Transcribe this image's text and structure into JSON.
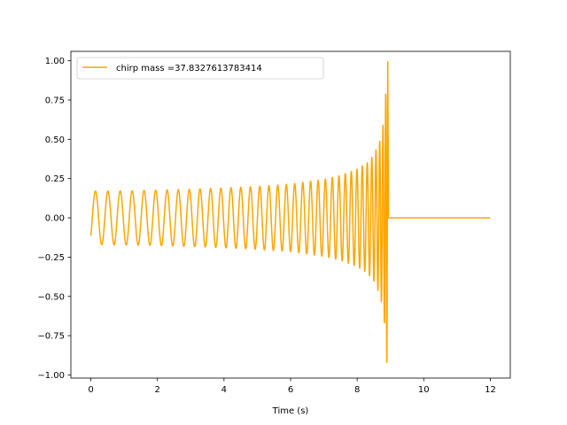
{
  "chart_data": {
    "type": "line",
    "title": "",
    "xlabel": "Time (s)",
    "ylabel": "",
    "xlim": [
      -0.6,
      12.6
    ],
    "ylim": [
      -1.02,
      1.06
    ],
    "xticks": [
      0,
      2,
      4,
      6,
      8,
      10,
      12
    ],
    "xtick_labels": [
      "0",
      "2",
      "4",
      "6",
      "8",
      "10",
      "12"
    ],
    "yticks": [
      1.0,
      0.75,
      0.5,
      0.25,
      0.0,
      -0.25,
      -0.5,
      -0.75,
      -1.0
    ],
    "ytick_labels": [
      "1.00",
      "0.75",
      "0.50",
      "0.25",
      "0.00",
      "−0.25",
      "−0.50",
      "−0.75",
      "−1.00"
    ],
    "grid": false,
    "legend_position": "top-left",
    "series": [
      {
        "name": "chirp mass =37.8327613783414",
        "color": "#ffa500",
        "envelope": {
          "t": [
            0.0,
            1.0,
            2.0,
            3.0,
            4.0,
            5.0,
            6.0,
            7.0,
            7.5,
            8.0,
            8.3,
            8.5,
            8.7,
            8.8,
            8.85,
            8.88,
            8.9,
            8.92
          ],
          "amplitude": [
            0.17,
            0.172,
            0.176,
            0.182,
            0.19,
            0.2,
            0.215,
            0.245,
            0.27,
            0.31,
            0.35,
            0.4,
            0.5,
            0.62,
            0.75,
            0.9,
            0.98,
            1.0
          ]
        },
        "merger_time": 8.92,
        "min_value": -0.92,
        "max_value": 1.0,
        "end_time": 12.0,
        "end_value": 0.0
      }
    ]
  }
}
